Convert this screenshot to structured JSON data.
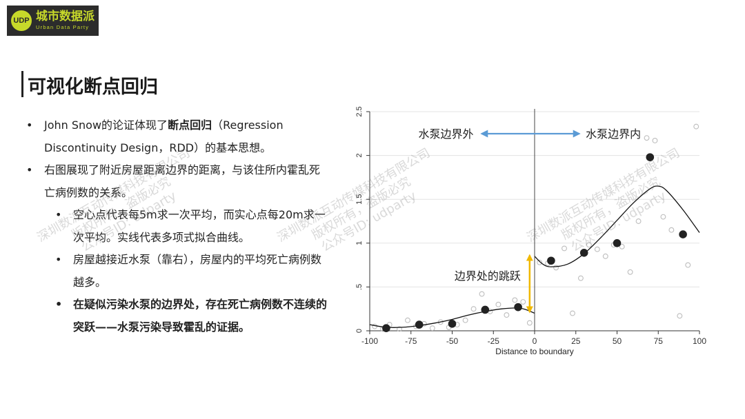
{
  "logo": {
    "mark": "UDP",
    "name_cn": "城市数据派",
    "name_en": "Urban Data Party"
  },
  "slide": {
    "title": "可视化断点回归"
  },
  "bullets": {
    "b1_pre": "John Snow的论证体现了",
    "b1_bold": "断点回归",
    "b1_post": "（Regression Discontinuity Design，RDD）的基本思想。",
    "b2": "右图展现了附近房屋距离边界的距离，与该住所内霍乱死亡病例数的关系。",
    "s1": "空心点代表每5m求一次平均，而实心点每20m求一次平均。实线代表多项式拟合曲线。",
    "s2": "房屋越接近水泵（靠右），房屋内的平均死亡病例数越多。",
    "s3": "在疑似污染水泵的边界处，存在死亡病例数不连续的突跃——水泵污染导致霍乱的证据。"
  },
  "watermarks": {
    "line1": "深圳数派互动传媒科技有限公司",
    "line2": "版权所有，盗版必究",
    "line3": "公众号ID: udparty"
  },
  "colors": {
    "arrow_blue": "#5b9bd5",
    "jump_yellow": "#f0b800",
    "logo_bg": "#2c2c2c",
    "logo_accent": "#c7d92a"
  },
  "chart_data": {
    "type": "scatter",
    "xlabel": "Distance to boundary",
    "ylabel": "",
    "xlim": [
      -100,
      100
    ],
    "ylim": [
      0,
      2.5
    ],
    "xticks": [
      -100,
      -75,
      -50,
      -25,
      0,
      25,
      50,
      75,
      100
    ],
    "yticks": [
      0,
      0.5,
      1,
      1.5,
      2,
      2.5
    ],
    "ytick_labels": [
      "0",
      ".5",
      "1",
      "1.5",
      "2",
      "2.5"
    ],
    "cutoff": 0,
    "annotations": {
      "outside": "水泵边界外",
      "inside": "水泵边界内",
      "jump": "边界处的跳跃"
    },
    "series": [
      {
        "kind": "hollow",
        "points": [
          [
            -97,
            0.05
          ],
          [
            -92,
            0.02
          ],
          [
            -88,
            0.07
          ],
          [
            -82,
            0.02
          ],
          [
            -77,
            0.12
          ],
          [
            -72,
            0.05
          ],
          [
            -67,
            0.08
          ],
          [
            -62,
            0.03
          ],
          [
            -57,
            0.1
          ],
          [
            -52,
            0.04
          ],
          [
            -47,
            0.07
          ],
          [
            -42,
            0.12
          ],
          [
            -37,
            0.25
          ],
          [
            -32,
            0.42
          ],
          [
            -27,
            0.22
          ],
          [
            -22,
            0.3
          ],
          [
            -17,
            0.18
          ],
          [
            -12,
            0.35
          ],
          [
            -7,
            0.33
          ],
          [
            -3,
            0.09
          ],
          [
            3,
            0.78
          ],
          [
            8,
            0.77
          ],
          [
            13,
            0.72
          ],
          [
            18,
            0.94
          ],
          [
            23,
            0.2
          ],
          [
            28,
            0.6
          ],
          [
            33,
            0.98
          ],
          [
            38,
            0.93
          ],
          [
            43,
            0.85
          ],
          [
            48,
            0.98
          ],
          [
            53,
            0.96
          ],
          [
            58,
            0.67
          ],
          [
            63,
            1.25
          ],
          [
            68,
            2.2
          ],
          [
            73,
            2.17
          ],
          [
            78,
            1.3
          ],
          [
            83,
            1.15
          ],
          [
            88,
            0.17
          ],
          [
            93,
            0.75
          ],
          [
            98,
            2.33
          ]
        ]
      },
      {
        "kind": "solid",
        "points": [
          [
            -90,
            0.03
          ],
          [
            -70,
            0.07
          ],
          [
            -50,
            0.08
          ],
          [
            -30,
            0.24
          ],
          [
            -10,
            0.27
          ],
          [
            10,
            0.8
          ],
          [
            30,
            0.89
          ],
          [
            50,
            1.0
          ],
          [
            70,
            1.98
          ],
          [
            90,
            1.1
          ]
        ]
      }
    ],
    "fit_left": [
      [
        -100,
        0.07
      ],
      [
        -90,
        0.04
      ],
      [
        -80,
        0.04
      ],
      [
        -70,
        0.06
      ],
      [
        -60,
        0.09
      ],
      [
        -50,
        0.13
      ],
      [
        -40,
        0.18
      ],
      [
        -30,
        0.22
      ],
      [
        -20,
        0.25
      ],
      [
        -10,
        0.26
      ],
      [
        -5,
        0.24
      ],
      [
        0,
        0.2
      ]
    ],
    "fit_right": [
      [
        0,
        0.85
      ],
      [
        5,
        0.76
      ],
      [
        10,
        0.73
      ],
      [
        20,
        0.76
      ],
      [
        30,
        0.88
      ],
      [
        40,
        1.06
      ],
      [
        50,
        1.26
      ],
      [
        60,
        1.46
      ],
      [
        70,
        1.62
      ],
      [
        75,
        1.65
      ],
      [
        80,
        1.6
      ],
      [
        90,
        1.38
      ],
      [
        100,
        1.12
      ]
    ]
  }
}
